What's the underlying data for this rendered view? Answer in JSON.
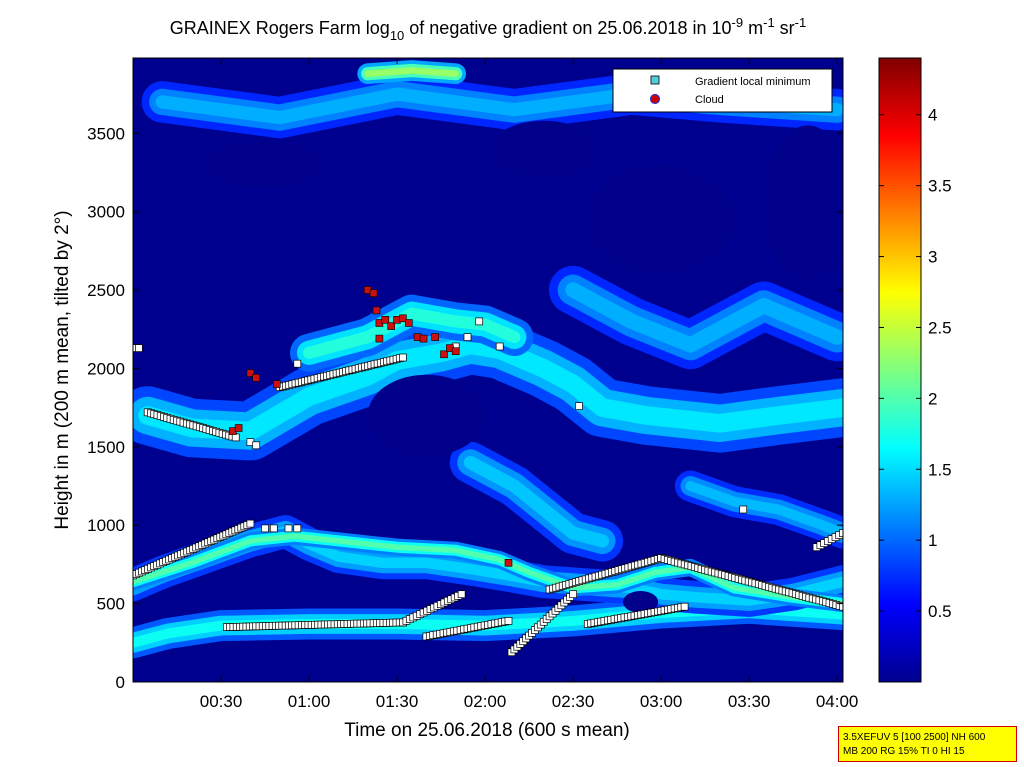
{
  "chart_data": {
    "type": "heatmap",
    "title": {
      "prefix": "GRAINEX Rogers Farm log",
      "sub": "10",
      "middle": " of negative gradient on 25.06.2018 in 10",
      "sup1": "-9",
      "unit1": " m",
      "sup2": "-1",
      "unit2": " sr",
      "sup3": "-1"
    },
    "xlabel": "Time on 25.06.2018 (600 s mean)",
    "ylabel": "Height in m (200 m mean, tilted by 2°)",
    "x_ticks": [
      "00:30",
      "01:00",
      "01:30",
      "02:00",
      "02:30",
      "03:00",
      "03:30",
      "04:00"
    ],
    "x_tick_minutes": [
      30,
      60,
      90,
      120,
      150,
      180,
      210,
      240
    ],
    "xlim_minutes": [
      0,
      242
    ],
    "y_ticks": [
      "0",
      "500",
      "1000",
      "1500",
      "2000",
      "2500",
      "3000",
      "3500"
    ],
    "y_tick_values": [
      0,
      500,
      1000,
      1500,
      2000,
      2500,
      3000,
      3500
    ],
    "ylim": [
      0,
      3980
    ],
    "colorbar": {
      "ticks": [
        "0.5",
        "1",
        "1.5",
        "2",
        "2.5",
        "3",
        "3.5",
        "4"
      ],
      "tick_values": [
        0.5,
        1,
        1.5,
        2,
        2.5,
        3,
        3.5,
        4
      ],
      "range": [
        0,
        4.4
      ],
      "colormap": "jet"
    },
    "legend": {
      "position": "top-right",
      "entries": [
        {
          "label": "Gradient local minimum",
          "marker": "square",
          "color": "#55ccdd"
        },
        {
          "label": "Cloud",
          "marker": "circle",
          "color": "#cc0000"
        }
      ]
    },
    "layers": [
      {
        "points": [
          [
            0,
            250
          ],
          [
            12,
            310
          ],
          [
            30,
            360
          ],
          [
            60,
            370
          ],
          [
            90,
            370
          ],
          [
            120,
            360
          ],
          [
            150,
            390
          ],
          [
            180,
            440
          ],
          [
            210,
            470
          ],
          [
            242,
            430
          ]
        ],
        "width": 90,
        "level": 1.7
      },
      {
        "points": [
          [
            0,
            620
          ],
          [
            10,
            700
          ],
          [
            25,
            800
          ],
          [
            40,
            900
          ],
          [
            52,
            960
          ],
          [
            60,
            880
          ],
          [
            70,
            800
          ],
          [
            85,
            760
          ],
          [
            100,
            760
          ],
          [
            115,
            720
          ],
          [
            128,
            680
          ],
          [
            140,
            640
          ],
          [
            155,
            620
          ],
          [
            170,
            600
          ],
          [
            180,
            560
          ],
          [
            192,
            540
          ],
          [
            210,
            520
          ],
          [
            225,
            560
          ],
          [
            242,
            640
          ]
        ],
        "width": 95,
        "level": 1.45
      },
      {
        "points": [
          [
            0,
            640
          ],
          [
            20,
            760
          ],
          [
            40,
            900
          ],
          [
            55,
            930
          ],
          [
            70,
            900
          ],
          [
            90,
            860
          ],
          [
            110,
            840
          ],
          [
            125,
            780
          ],
          [
            135,
            700
          ],
          [
            150,
            600
          ],
          [
            165,
            620
          ],
          [
            178,
            700
          ],
          [
            190,
            730
          ],
          [
            205,
            600
          ],
          [
            225,
            540
          ],
          [
            242,
            500
          ]
        ],
        "width": 50,
        "level": 2.0
      },
      {
        "points": [
          [
            5,
            1700
          ],
          [
            20,
            1620
          ],
          [
            40,
            1600
          ],
          [
            60,
            1820
          ],
          [
            80,
            1950
          ],
          [
            90,
            2050
          ],
          [
            105,
            2100
          ],
          [
            115,
            2150
          ],
          [
            125,
            2120
          ],
          [
            140,
            2000
          ],
          [
            150,
            1900
          ],
          [
            160,
            1750
          ],
          [
            175,
            1700
          ],
          [
            200,
            1650
          ],
          [
            220,
            1700
          ],
          [
            242,
            1750
          ]
        ],
        "width": 170,
        "level": 1.55
      },
      {
        "points": [
          [
            60,
            2100
          ],
          [
            80,
            2200
          ],
          [
            95,
            2350
          ],
          [
            110,
            2300
          ],
          [
            120,
            2280
          ],
          [
            130,
            2200
          ]
        ],
        "width": 110,
        "level": 1.8
      },
      {
        "points": [
          [
            115,
            1400
          ],
          [
            130,
            1250
          ],
          [
            140,
            1100
          ],
          [
            150,
            950
          ],
          [
            160,
            900
          ]
        ],
        "width": 120,
        "level": 1.4
      },
      {
        "points": [
          [
            10,
            3700
          ],
          [
            50,
            3600
          ],
          [
            90,
            3750
          ],
          [
            130,
            3650
          ],
          [
            170,
            3750
          ],
          [
            200,
            3700
          ],
          [
            240,
            3650
          ]
        ],
        "width": 120,
        "level": 1.3
      },
      {
        "points": [
          [
            80,
            3880
          ],
          [
            95,
            3900
          ],
          [
            110,
            3880
          ]
        ],
        "width": 60,
        "level": 2.3
      },
      {
        "points": [
          [
            150,
            2500
          ],
          [
            170,
            2300
          ],
          [
            190,
            2150
          ],
          [
            215,
            2400
          ],
          [
            240,
            2200
          ]
        ],
        "width": 140,
        "level": 1.3
      },
      {
        "points": [
          [
            190,
            1250
          ],
          [
            205,
            1150
          ],
          [
            220,
            1100
          ],
          [
            235,
            1000
          ],
          [
            242,
            950
          ]
        ],
        "width": 90,
        "level": 1.35
      }
    ],
    "holes": [
      {
        "x": 100,
        "y": 1700,
        "rx": 20,
        "ry": 260
      },
      {
        "x": 180,
        "y": 2950,
        "rx": 25,
        "ry": 350
      },
      {
        "x": 230,
        "y": 3050,
        "rx": 15,
        "ry": 500
      },
      {
        "x": 45,
        "y": 3300,
        "rx": 20,
        "ry": 150
      },
      {
        "x": 140,
        "y": 3400,
        "rx": 18,
        "ry": 180
      },
      {
        "x": 173,
        "y": 510,
        "rx": 6,
        "ry": 70
      }
    ],
    "gradient_minimum_tracks": [
      {
        "x_start": 0,
        "x_end": 40,
        "y_start": 680,
        "y_end": 1010,
        "n": 40
      },
      {
        "x_start": 32,
        "x_end": 92,
        "y_start": 350,
        "y_end": 380,
        "n": 55
      },
      {
        "x_start": 92,
        "x_end": 112,
        "y_start": 380,
        "y_end": 560,
        "n": 18
      },
      {
        "x_start": 100,
        "x_end": 128,
        "y_start": 290,
        "y_end": 390,
        "n": 25
      },
      {
        "x_start": 129,
        "x_end": 150,
        "y_start": 190,
        "y_end": 560,
        "n": 22
      },
      {
        "x_start": 142,
        "x_end": 180,
        "y_start": 590,
        "y_end": 790,
        "n": 35
      },
      {
        "x_start": 180,
        "x_end": 242,
        "y_start": 790,
        "y_end": 480,
        "n": 55
      },
      {
        "x_start": 155,
        "x_end": 188,
        "y_start": 370,
        "y_end": 480,
        "n": 30
      },
      {
        "x_start": 5,
        "x_end": 35,
        "y_start": 1720,
        "y_end": 1560,
        "n": 28
      },
      {
        "x_start": 50,
        "x_end": 92,
        "y_start": 1880,
        "y_end": 2070,
        "n": 40
      },
      {
        "x_start": 233,
        "x_end": 242,
        "y_start": 860,
        "y_end": 950,
        "n": 8
      },
      {
        "x_start": 0,
        "x_end": 2,
        "y_start": 2130,
        "y_end": 2130,
        "n": 3
      }
    ],
    "gradient_minimum_points": [
      [
        45,
        980
      ],
      [
        48,
        980
      ],
      [
        53,
        980
      ],
      [
        56,
        980
      ],
      [
        40,
        1530
      ],
      [
        42,
        1510
      ],
      [
        208,
        1100
      ],
      [
        152,
        1760
      ],
      [
        56,
        2030
      ],
      [
        118,
        2300
      ],
      [
        114,
        2200
      ],
      [
        110,
        2140
      ],
      [
        125,
        2140
      ]
    ],
    "cloud_points": [
      [
        34,
        1600
      ],
      [
        36,
        1620
      ],
      [
        40,
        1970
      ],
      [
        42,
        1940
      ],
      [
        49,
        1900
      ],
      [
        80,
        2500
      ],
      [
        82,
        2480
      ],
      [
        83,
        2370
      ],
      [
        84,
        2290
      ],
      [
        86,
        2310
      ],
      [
        88,
        2270
      ],
      [
        90,
        2310
      ],
      [
        92,
        2320
      ],
      [
        94,
        2290
      ],
      [
        97,
        2200
      ],
      [
        99,
        2190
      ],
      [
        103,
        2200
      ],
      [
        106,
        2090
      ],
      [
        108,
        2130
      ],
      [
        110,
        2110
      ],
      [
        84,
        2190
      ],
      [
        128,
        760
      ]
    ]
  },
  "footer": {
    "line1": "3.5XEFUV 5 [100 2500] NH 600",
    "line2": "MB 200 RG 15% TI 0 HI 15"
  }
}
